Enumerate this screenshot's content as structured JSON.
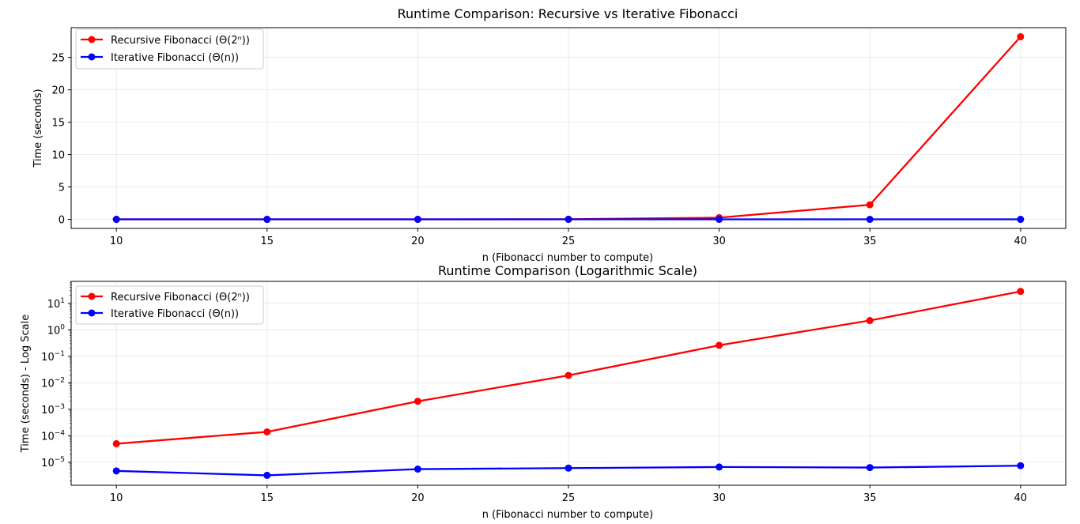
{
  "chart_data": [
    {
      "type": "line",
      "title": "Runtime Comparison: Recursive vs Iterative Fibonacci",
      "xlabel": "n (Fibonacci number to compute)",
      "ylabel": "Time (seconds)",
      "x": [
        10,
        15,
        20,
        25,
        30,
        35,
        40
      ],
      "xticks": [
        "10",
        "15",
        "20",
        "25",
        "30",
        "35",
        "40"
      ],
      "yticks": [
        "0",
        "5",
        "10",
        "15",
        "20",
        "25"
      ],
      "ylim": [
        -1.4,
        29.6
      ],
      "xlim": [
        8.5,
        41.5
      ],
      "yscale": "linear",
      "grid": true,
      "legend_position": "upper-left",
      "series": [
        {
          "name": "Recursive Fibonacci (Θ(2ⁿ))",
          "color": "#ff0000",
          "values": [
            5e-05,
            0.00014,
            0.002,
            0.019,
            0.26,
            2.25,
            28.2
          ]
        },
        {
          "name": "Iterative Fibonacci (Θ(n))",
          "color": "#0000ff",
          "values": [
            4.7e-06,
            3.2e-06,
            5.5e-06,
            6e-06,
            6.6e-06,
            6.3e-06,
            7.4e-06
          ]
        }
      ]
    },
    {
      "type": "line",
      "title": "Runtime Comparison (Logarithmic Scale)",
      "xlabel": "n (Fibonacci number to compute)",
      "ylabel": "Time (seconds) - Log Scale",
      "x": [
        10,
        15,
        20,
        25,
        30,
        35,
        40
      ],
      "xticks": [
        "10",
        "15",
        "20",
        "25",
        "30",
        "35",
        "40"
      ],
      "yticks_exp": [
        "−5",
        "−4",
        "−3",
        "−2",
        "−1",
        "0",
        "1"
      ],
      "ytick_base": "10",
      "ylim_log10": [
        -5.87,
        1.83
      ],
      "xlim": [
        8.5,
        41.5
      ],
      "yscale": "log",
      "grid": true,
      "legend_position": "upper-left",
      "series": [
        {
          "name": "Recursive Fibonacci (Θ(2ⁿ))",
          "color": "#ff0000",
          "values": [
            5e-05,
            0.00014,
            0.002,
            0.019,
            0.26,
            2.25,
            28.2
          ]
        },
        {
          "name": "Iterative Fibonacci (Θ(n))",
          "color": "#0000ff",
          "values": [
            4.7e-06,
            3.2e-06,
            5.5e-06,
            6e-06,
            6.6e-06,
            6.3e-06,
            7.4e-06
          ]
        }
      ]
    }
  ]
}
